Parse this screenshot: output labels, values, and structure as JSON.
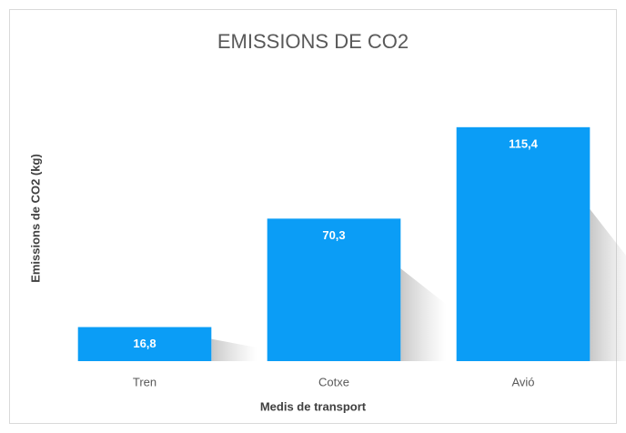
{
  "chart_data": {
    "type": "bar",
    "title": "EMISSIONS DE CO2",
    "x_label": "Medis de transport",
    "y_label": "Emissions de CO2 (kg)",
    "categories": [
      "Tren",
      "Cotxe",
      "Avió"
    ],
    "values": [
      16.8,
      70.3,
      115.4
    ],
    "value_labels": [
      "16,8",
      "70,3",
      "115,4"
    ],
    "color": "#0b9df6",
    "ylim": [
      0,
      140
    ]
  }
}
